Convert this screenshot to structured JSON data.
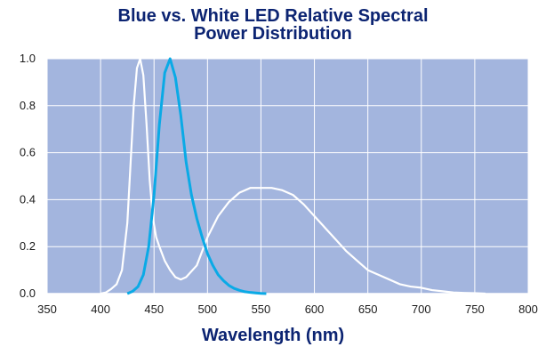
{
  "chart_data": {
    "type": "line",
    "title_line1": "Blue vs. White LED Relative Spectral",
    "title_line2": "Power Distribution",
    "xlabel": "Wavelength (nm)",
    "ylabel": "",
    "xlim": [
      350,
      800
    ],
    "ylim": [
      0,
      1
    ],
    "xticks": [
      "350",
      "400",
      "450",
      "500",
      "550",
      "600",
      "650",
      "700",
      "750",
      "800"
    ],
    "yticks": [
      "0.0",
      "0.2",
      "0.4",
      "0.6",
      "0.8",
      "1.0"
    ],
    "grid": true,
    "background_color": "#a3b5de",
    "series": [
      {
        "color": "#ffffff",
        "x": [
          400,
          405,
          410,
          415,
          420,
          425,
          428,
          431,
          434,
          437,
          440,
          443,
          446,
          449,
          452,
          455,
          460,
          465,
          470,
          475,
          480,
          490,
          500,
          510,
          520,
          530,
          540,
          550,
          560,
          570,
          580,
          590,
          600,
          610,
          620,
          630,
          640,
          650,
          660,
          670,
          680,
          690,
          700,
          710,
          720,
          730,
          740,
          750,
          760
        ],
        "y": [
          0.0,
          0.005,
          0.02,
          0.04,
          0.1,
          0.3,
          0.55,
          0.8,
          0.96,
          1.0,
          0.93,
          0.72,
          0.48,
          0.32,
          0.24,
          0.2,
          0.14,
          0.1,
          0.07,
          0.06,
          0.07,
          0.12,
          0.24,
          0.33,
          0.39,
          0.43,
          0.45,
          0.45,
          0.45,
          0.44,
          0.42,
          0.38,
          0.33,
          0.28,
          0.23,
          0.18,
          0.14,
          0.1,
          0.08,
          0.06,
          0.04,
          0.03,
          0.025,
          0.015,
          0.01,
          0.005,
          0.003,
          0.002,
          0.0
        ]
      },
      {
        "color": "#0aaae6",
        "x": [
          425,
          430,
          435,
          440,
          445,
          450,
          455,
          460,
          465,
          470,
          475,
          480,
          485,
          490,
          495,
          500,
          505,
          510,
          515,
          520,
          525,
          530,
          535,
          540,
          545,
          550,
          555
        ],
        "y": [
          0.0,
          0.01,
          0.03,
          0.08,
          0.2,
          0.42,
          0.72,
          0.94,
          1.0,
          0.92,
          0.76,
          0.56,
          0.42,
          0.32,
          0.24,
          0.17,
          0.12,
          0.08,
          0.055,
          0.035,
          0.022,
          0.014,
          0.008,
          0.005,
          0.003,
          0.001,
          0.0
        ]
      }
    ]
  }
}
